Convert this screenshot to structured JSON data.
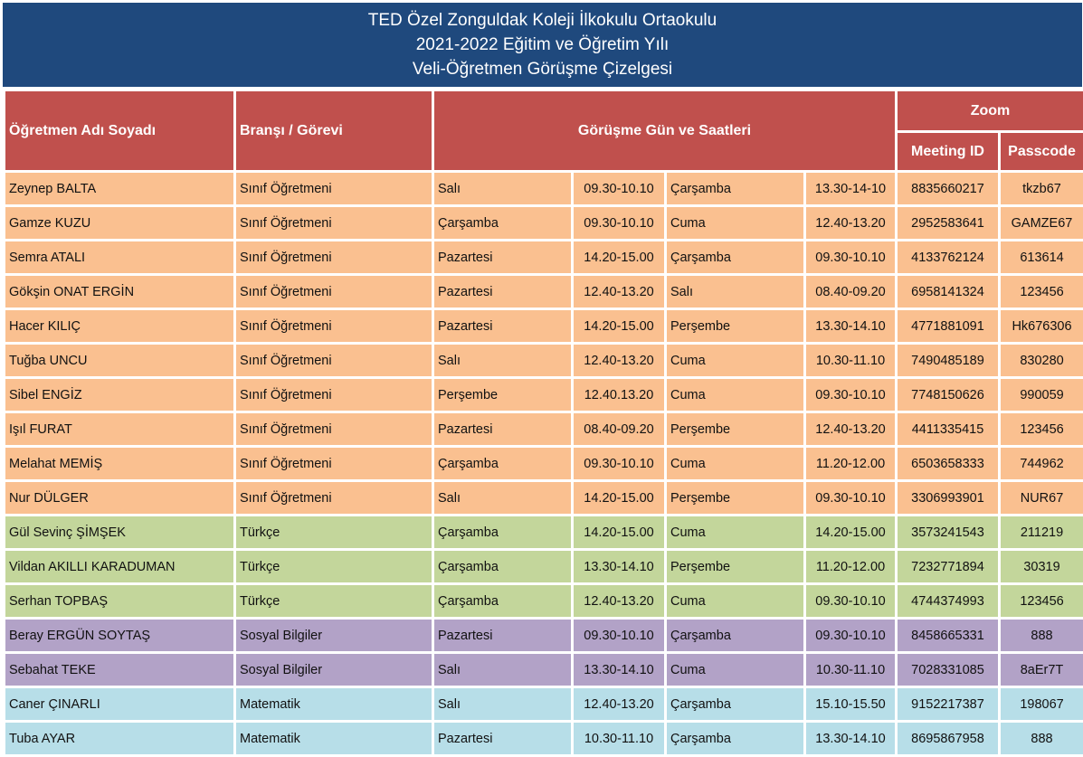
{
  "title": {
    "line1": "TED Özel Zonguldak Koleji İlkokulu Ortaokulu",
    "line2": "2021-2022 Eğitim ve Öğretim Yılı",
    "line3": "Veli-Öğretmen Görüşme Çizelgesi"
  },
  "headers": {
    "teacher": "Öğretmen Adı Soyadı",
    "branch": "Branşı / Görevi",
    "schedule": "Görüşme Gün ve Saatleri",
    "zoom": "Zoom",
    "meeting_id": "Meeting ID",
    "passcode": "Passcode"
  },
  "colors": {
    "title_bg": "#1f497d",
    "header_bg": "#c0504d",
    "orange": "#fac090",
    "green": "#c3d69b",
    "purple": "#b2a2c7",
    "blue": "#b7dee8"
  },
  "rows": [
    {
      "name": "Zeynep BALTA",
      "branch": "Sınıf Öğretmeni",
      "day1": "Salı",
      "time1": "09.30-10.10",
      "day2": "Çarşamba",
      "time2": "13.30-14-10",
      "meeting_id": "8835660217",
      "passcode": "tkzb67",
      "group": "orange"
    },
    {
      "name": "Gamze KUZU",
      "branch": "Sınıf Öğretmeni",
      "day1": "Çarşamba",
      "time1": "09.30-10.10",
      "day2": "Cuma",
      "time2": "12.40-13.20",
      "meeting_id": "2952583641",
      "passcode": "GAMZE67",
      "group": "orange"
    },
    {
      "name": "Semra ATALI",
      "branch": "Sınıf Öğretmeni",
      "day1": "Pazartesi",
      "time1": "14.20-15.00",
      "day2": "Çarşamba",
      "time2": "09.30-10.10",
      "meeting_id": "4133762124",
      "passcode": "613614",
      "group": "orange"
    },
    {
      "name": "Gökşin ONAT ERGİN",
      "branch": "Sınıf Öğretmeni",
      "day1": "Pazartesi",
      "time1": "12.40-13.20",
      "day2": "Salı",
      "time2": "08.40-09.20",
      "meeting_id": "6958141324",
      "passcode": "123456",
      "group": "orange"
    },
    {
      "name": "Hacer KILIÇ",
      "branch": "Sınıf Öğretmeni",
      "day1": "Pazartesi",
      "time1": "14.20-15.00",
      "day2": "Perşembe",
      "time2": "13.30-14.10",
      "meeting_id": "4771881091",
      "passcode": "Hk676306",
      "group": "orange"
    },
    {
      "name": "Tuğba UNCU",
      "branch": "Sınıf Öğretmeni",
      "day1": "Salı",
      "time1": "12.40-13.20",
      "day2": "Cuma",
      "time2": "10.30-11.10",
      "meeting_id": "7490485189",
      "passcode": "830280",
      "group": "orange"
    },
    {
      "name": "Sibel ENGİZ",
      "branch": "Sınıf Öğretmeni",
      "day1": "Perşembe",
      "time1": "12.40.13.20",
      "day2": "Cuma",
      "time2": "09.30-10.10",
      "meeting_id": "7748150626",
      "passcode": "990059",
      "group": "orange"
    },
    {
      "name": "Işıl FURAT",
      "branch": "Sınıf Öğretmeni",
      "day1": "Pazartesi",
      "time1": "08.40-09.20",
      "day2": "Perşembe",
      "time2": "12.40-13.20",
      "meeting_id": "4411335415",
      "passcode": "123456",
      "group": "orange"
    },
    {
      "name": "Melahat MEMİŞ",
      "branch": "Sınıf Öğretmeni",
      "day1": "Çarşamba",
      "time1": "09.30-10.10",
      "day2": "Cuma",
      "time2": "11.20-12.00",
      "meeting_id": "6503658333",
      "passcode": "744962",
      "group": "orange"
    },
    {
      "name": "Nur DÜLGER",
      "branch": "Sınıf Öğretmeni",
      "day1": "Salı",
      "time1": "14.20-15.00",
      "day2": "Perşembe",
      "time2": "09.30-10.10",
      "meeting_id": "3306993901",
      "passcode": "NUR67",
      "group": "orange"
    },
    {
      "name": "Gül Sevinç ŞİMŞEK",
      "branch": "Türkçe",
      "day1": "Çarşamba",
      "time1": "14.20-15.00",
      "day2": "Cuma",
      "time2": "14.20-15.00",
      "meeting_id": "3573241543",
      "passcode": "211219",
      "group": "green"
    },
    {
      "name": "Vildan AKILLI KARADUMAN",
      "branch": "Türkçe",
      "day1": "Çarşamba",
      "time1": "13.30-14.10",
      "day2": "Perşembe",
      "time2": "11.20-12.00",
      "meeting_id": "7232771894",
      "passcode": "30319",
      "group": "green"
    },
    {
      "name": "Serhan TOPBAŞ",
      "branch": "Türkçe",
      "day1": "Çarşamba",
      "time1": "12.40-13.20",
      "day2": "Cuma",
      "time2": "09.30-10.10",
      "meeting_id": "4744374993",
      "passcode": "123456",
      "group": "green"
    },
    {
      "name": "Beray ERGÜN SOYTAŞ",
      "branch": "Sosyal Bilgiler",
      "day1": "Pazartesi",
      "time1": "09.30-10.10",
      "day2": "Çarşamba",
      "time2": "09.30-10.10",
      "meeting_id": "8458665331",
      "passcode": "888",
      "group": "purple"
    },
    {
      "name": "Sebahat TEKE",
      "branch": "Sosyal Bilgiler",
      "day1": "Salı",
      "time1": "13.30-14.10",
      "day2": "Cuma",
      "time2": "10.30-11.10",
      "meeting_id": "7028331085",
      "passcode": "8aEr7T",
      "group": "purple"
    },
    {
      "name": "Caner ÇINARLI",
      "branch": "Matematik",
      "day1": "Salı",
      "time1": "12.40-13.20",
      "day2": "Çarşamba",
      "time2": "15.10-15.50",
      "meeting_id": "9152217387",
      "passcode": "198067",
      "group": "blue"
    },
    {
      "name": "Tuba AYAR",
      "branch": "Matematik",
      "day1": "Pazartesi",
      "time1": "10.30-11.10",
      "day2": "Çarşamba",
      "time2": "13.30-14.10",
      "meeting_id": "8695867958",
      "passcode": "888",
      "group": "blue"
    }
  ]
}
